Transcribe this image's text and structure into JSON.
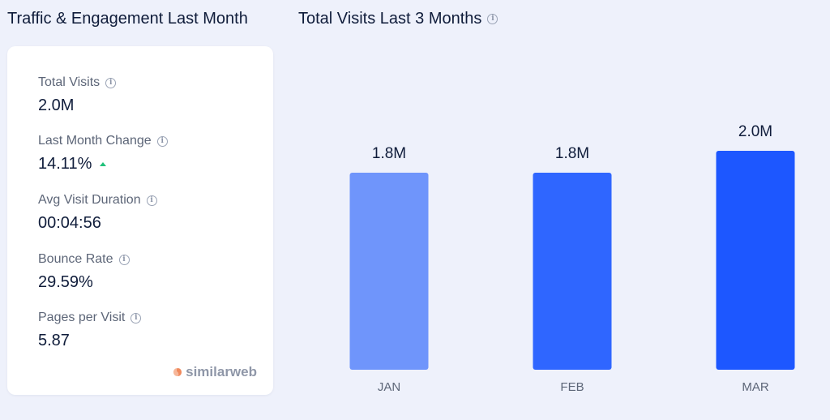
{
  "left_panel": {
    "title": "Traffic & Engagement Last Month",
    "metrics": [
      {
        "label": "Total Visits",
        "value": "2.0M"
      },
      {
        "label": "Last Month Change",
        "value": "14.11%",
        "trend": "up"
      },
      {
        "label": "Avg Visit Duration",
        "value": "00:04:56"
      },
      {
        "label": "Bounce Rate",
        "value": "29.59%"
      },
      {
        "label": "Pages per Visit",
        "value": "5.87"
      }
    ],
    "brand": "similarweb"
  },
  "right_panel": {
    "title": "Total Visits Last 3 Months"
  },
  "info_icon": "info-circle-icon",
  "colors": {
    "bar_jan": "#6f95fb",
    "bar_feb": "#2f66ff",
    "bar_mar": "#1d57ff",
    "trend_up": "#20c17a",
    "brand_mark": "#f08a5d"
  },
  "chart_data": {
    "type": "bar",
    "categories": [
      "JAN",
      "FEB",
      "MAR"
    ],
    "values": [
      1.8,
      1.8,
      2.0
    ],
    "value_labels": [
      "1.8M",
      "1.8M",
      "2.0M"
    ],
    "title": "Total Visits Last 3 Months",
    "ylabel": "",
    "ylim": [
      0,
      2.0
    ],
    "grid": false,
    "legend": "none"
  }
}
